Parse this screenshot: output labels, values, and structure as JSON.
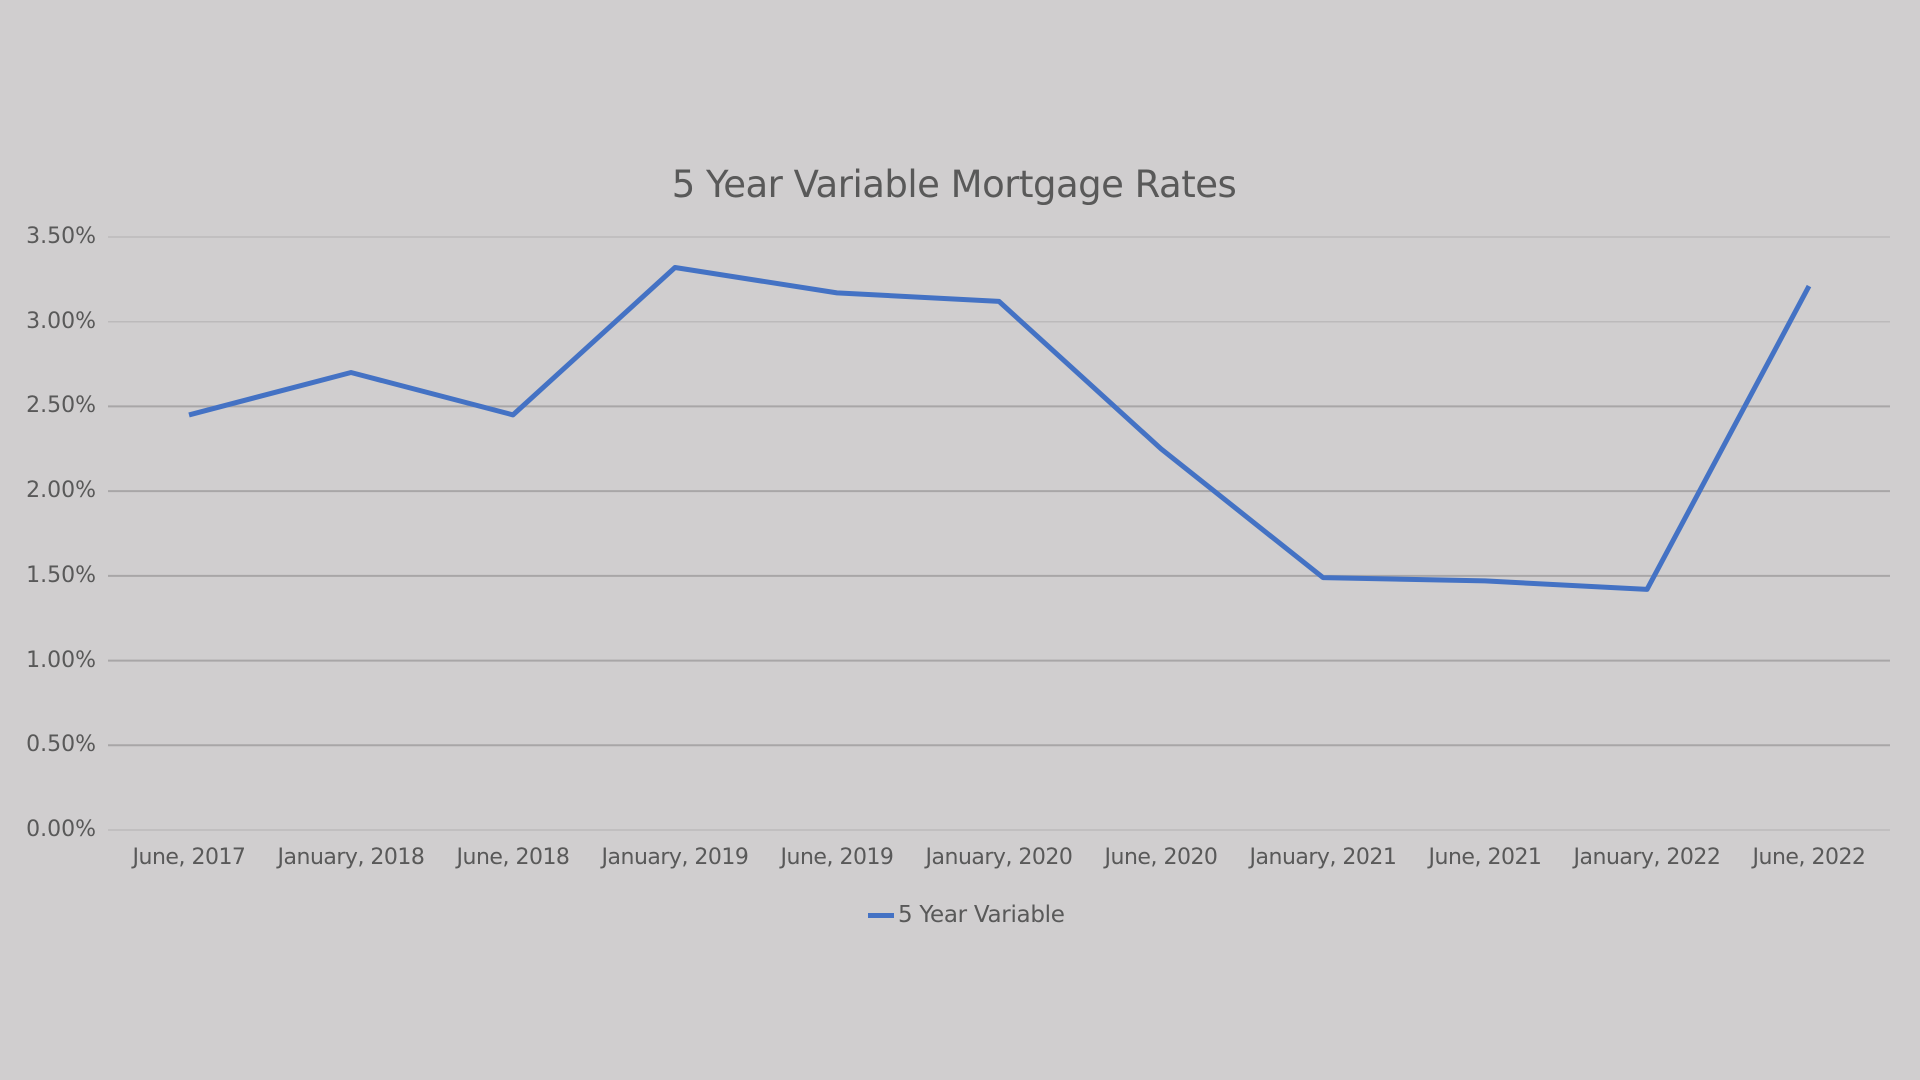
{
  "chart_data": {
    "type": "line",
    "title": "5 Year Variable Mortgage Rates",
    "xlabel": "",
    "ylabel": "",
    "categories": [
      "June, 2017",
      "January, 2018",
      "June, 2018",
      "January, 2019",
      "June, 2019",
      "January, 2020",
      "June, 2020",
      "January, 2021",
      "June, 2021",
      "January, 2022",
      "June, 2022"
    ],
    "series": [
      {
        "name": "5 Year Variable",
        "color": "#4472c4",
        "values": [
          2.45,
          2.7,
          2.45,
          3.32,
          3.17,
          3.12,
          2.25,
          1.49,
          1.47,
          1.42,
          3.21
        ]
      }
    ],
    "yticks": [
      "0.00%",
      "0.50%",
      "1.00%",
      "1.50%",
      "2.00%",
      "2.50%",
      "3.00%",
      "3.50%"
    ],
    "ylim": [
      0,
      3.5
    ],
    "grid": true,
    "legend_position": "bottom"
  },
  "legend": {
    "label": "5 Year Variable"
  }
}
